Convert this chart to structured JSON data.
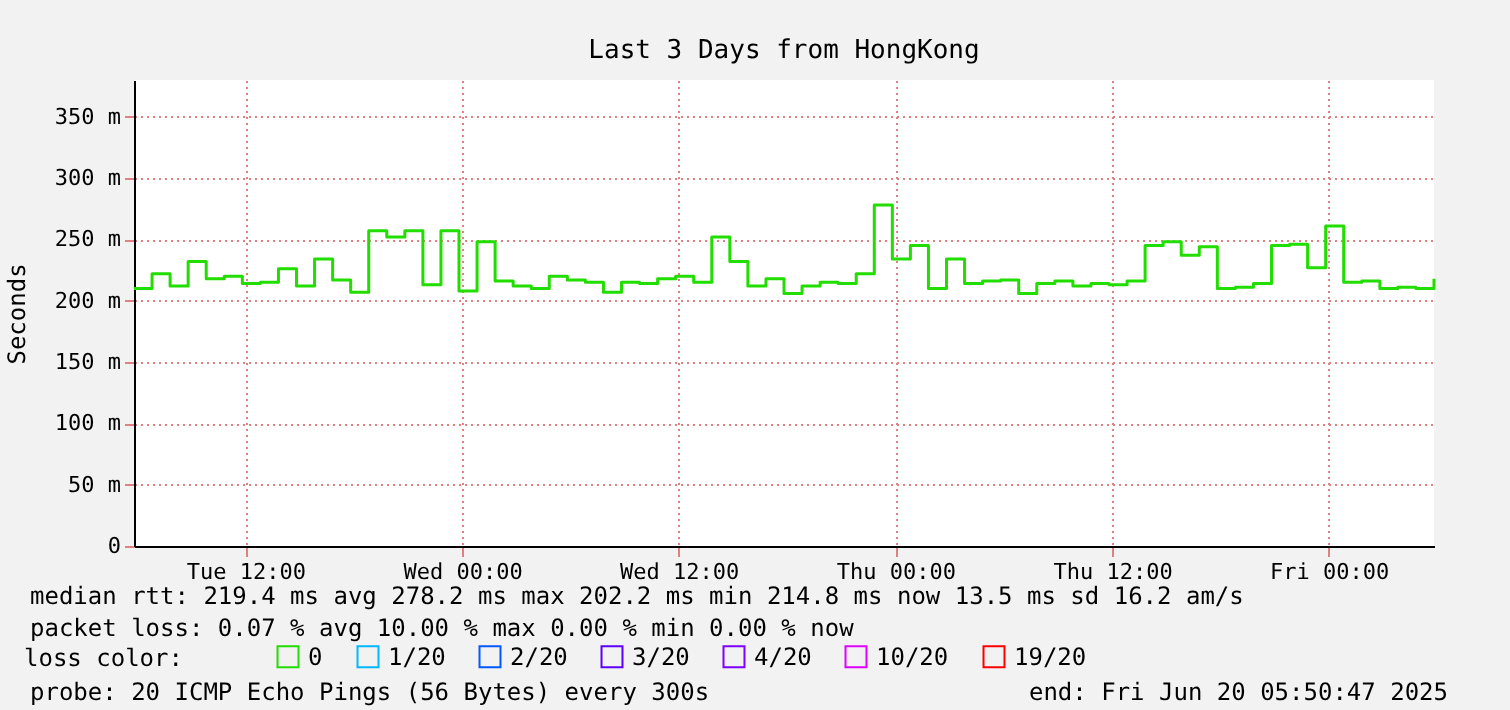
{
  "chart_data": {
    "type": "step",
    "title": "Last 3 Days from HongKong",
    "ylabel": "Seconds",
    "legend_title": "loss color:",
    "legend": "bottom left",
    "grid": true,
    "line_style": "solid",
    "marker": "none",
    "x": [
      "2025-06-17T05:50",
      "2025-06-17T06:50",
      "2025-06-17T07:50",
      "2025-06-17T08:50",
      "2025-06-17T09:50",
      "2025-06-17T10:50",
      "2025-06-17T11:50",
      "2025-06-17T12:50",
      "2025-06-17T13:50",
      "2025-06-17T14:50",
      "2025-06-17T15:50",
      "2025-06-17T16:50",
      "2025-06-17T17:50",
      "2025-06-17T18:50",
      "2025-06-17T19:50",
      "2025-06-17T20:50",
      "2025-06-17T21:50",
      "2025-06-17T22:50",
      "2025-06-17T23:50",
      "2025-06-18T00:50",
      "2025-06-18T01:50",
      "2025-06-18T02:50",
      "2025-06-18T03:50",
      "2025-06-18T04:50",
      "2025-06-18T05:50",
      "2025-06-18T06:50",
      "2025-06-18T07:50",
      "2025-06-18T08:50",
      "2025-06-18T09:50",
      "2025-06-18T10:50",
      "2025-06-18T11:50",
      "2025-06-18T12:50",
      "2025-06-18T13:50",
      "2025-06-18T14:50",
      "2025-06-18T15:50",
      "2025-06-18T16:50",
      "2025-06-18T17:50",
      "2025-06-18T18:50",
      "2025-06-18T19:50",
      "2025-06-18T20:50",
      "2025-06-18T21:50",
      "2025-06-18T22:50",
      "2025-06-18T23:50",
      "2025-06-19T00:50",
      "2025-06-19T01:50",
      "2025-06-19T02:50",
      "2025-06-19T03:50",
      "2025-06-19T04:50",
      "2025-06-19T05:50",
      "2025-06-19T06:50",
      "2025-06-19T07:50",
      "2025-06-19T08:50",
      "2025-06-19T09:50",
      "2025-06-19T10:50",
      "2025-06-19T11:50",
      "2025-06-19T12:50",
      "2025-06-19T13:50",
      "2025-06-19T14:50",
      "2025-06-19T15:50",
      "2025-06-19T16:50",
      "2025-06-19T17:50",
      "2025-06-19T18:50",
      "2025-06-19T19:50",
      "2025-06-19T20:50",
      "2025-06-19T21:50",
      "2025-06-19T22:50",
      "2025-06-19T23:50",
      "2025-06-20T00:50",
      "2025-06-20T01:50",
      "2025-06-20T02:50",
      "2025-06-20T03:50",
      "2025-06-20T04:50",
      "2025-06-20T05:50"
    ],
    "series": [
      {
        "name": "0",
        "color": "#22dd00",
        "values": [
          210,
          222,
          212,
          232,
          218,
          220,
          214,
          215,
          226,
          212,
          234,
          217,
          207,
          257,
          252,
          257,
          213,
          257,
          208,
          248,
          216,
          212,
          210,
          220,
          217,
          215,
          207,
          215,
          214,
          218,
          220,
          215,
          252,
          232,
          212,
          218,
          206,
          212,
          215,
          214,
          222,
          278,
          234,
          245,
          210,
          234,
          214,
          216,
          217,
          206,
          214,
          216,
          212,
          214,
          213,
          216,
          245,
          248,
          237,
          244,
          210,
          211,
          214,
          245,
          246,
          227,
          261,
          215,
          216,
          210,
          211,
          210,
          218
        ]
      },
      {
        "name": "1/20",
        "color": "#00b8ff",
        "values": [
          null,
          null,
          null,
          null,
          null,
          null,
          null,
          null,
          null,
          null,
          null,
          null,
          null,
          null,
          null,
          null,
          null,
          null,
          null,
          null,
          null,
          null,
          null,
          null,
          null,
          null,
          null,
          null,
          null,
          null,
          null,
          null,
          null,
          null,
          null,
          null,
          null,
          null,
          null,
          null,
          null,
          null,
          null,
          null,
          null,
          null,
          null,
          null,
          null,
          null,
          null,
          null,
          null,
          null,
          null,
          null,
          null,
          null,
          null,
          null,
          null,
          null,
          null,
          null,
          null,
          null,
          null,
          null,
          null,
          null,
          null,
          null,
          null
        ]
      },
      {
        "name": "2/20",
        "color": "#0059ff",
        "values": [
          null,
          null,
          null,
          null,
          null,
          null,
          null,
          null,
          null,
          null,
          null,
          null,
          null,
          null,
          null,
          null,
          null,
          null,
          null,
          null,
          null,
          null,
          null,
          null,
          null,
          null,
          null,
          null,
          null,
          null,
          null,
          null,
          null,
          null,
          null,
          null,
          null,
          null,
          null,
          null,
          null,
          null,
          null,
          null,
          null,
          null,
          null,
          null,
          null,
          null,
          null,
          null,
          null,
          null,
          null,
          null,
          null,
          null,
          null,
          null,
          null,
          null,
          null,
          null,
          null,
          null,
          null,
          null,
          null,
          null,
          null,
          null,
          null
        ]
      },
      {
        "name": "3/20",
        "color": "#5e00ff",
        "values": [
          null,
          null,
          null,
          null,
          null,
          null,
          null,
          null,
          null,
          null,
          null,
          null,
          null,
          null,
          null,
          null,
          null,
          null,
          null,
          null,
          null,
          null,
          null,
          null,
          null,
          null,
          null,
          null,
          null,
          null,
          null,
          null,
          null,
          null,
          null,
          null,
          null,
          null,
          null,
          null,
          null,
          null,
          null,
          null,
          null,
          null,
          null,
          null,
          null,
          null,
          null,
          null,
          null,
          null,
          null,
          null,
          null,
          null,
          null,
          null,
          null,
          null,
          null,
          null,
          null,
          null,
          null,
          null,
          null,
          null,
          null,
          null,
          null
        ]
      },
      {
        "name": "4/20",
        "color": "#7e00ff",
        "values": [
          null,
          null,
          null,
          null,
          null,
          null,
          null,
          null,
          null,
          null,
          null,
          null,
          null,
          null,
          null,
          null,
          null,
          null,
          null,
          null,
          null,
          null,
          null,
          null,
          null,
          null,
          null,
          null,
          null,
          null,
          null,
          null,
          null,
          null,
          null,
          null,
          null,
          null,
          null,
          null,
          null,
          null,
          null,
          null,
          null,
          null,
          null,
          null,
          null,
          null,
          null,
          null,
          null,
          null,
          null,
          null,
          null,
          null,
          null,
          null,
          null,
          null,
          null,
          null,
          null,
          null,
          null,
          null,
          null,
          null,
          null,
          null,
          null
        ]
      },
      {
        "name": "10/20",
        "color": "#dd00ff",
        "values": [
          null,
          null,
          null,
          null,
          null,
          null,
          null,
          null,
          null,
          null,
          null,
          null,
          null,
          null,
          null,
          null,
          null,
          null,
          null,
          null,
          null,
          null,
          null,
          null,
          null,
          null,
          null,
          null,
          null,
          null,
          null,
          null,
          null,
          null,
          null,
          null,
          null,
          null,
          null,
          null,
          null,
          null,
          null,
          null,
          null,
          null,
          null,
          null,
          null,
          null,
          null,
          null,
          null,
          null,
          null,
          null,
          null,
          null,
          null,
          null,
          null,
          null,
          null,
          null,
          null,
          null,
          null,
          null,
          null,
          null,
          null,
          null,
          null
        ]
      },
      {
        "name": "19/20",
        "color": "#ff0000",
        "values": [
          null,
          null,
          null,
          null,
          null,
          null,
          null,
          null,
          null,
          null,
          null,
          null,
          null,
          null,
          null,
          null,
          null,
          null,
          null,
          null,
          null,
          null,
          null,
          null,
          null,
          null,
          null,
          null,
          null,
          null,
          null,
          null,
          null,
          null,
          null,
          null,
          null,
          null,
          null,
          null,
          null,
          null,
          null,
          null,
          null,
          null,
          null,
          null,
          null,
          null,
          null,
          null,
          null,
          null,
          null,
          null,
          null,
          null,
          null,
          null,
          null,
          null,
          null,
          null,
          null,
          null,
          null,
          null,
          null,
          null,
          null,
          null,
          null
        ]
      }
    ],
    "xlim": [
      "2025-06-17T05:50",
      "2025-06-20T05:50"
    ],
    "xticks": [
      {
        "value": "2025-06-17T12:00",
        "label": "Tue 12:00"
      },
      {
        "value": "2025-06-18T00:00",
        "label": "Wed 00:00"
      },
      {
        "value": "2025-06-18T12:00",
        "label": "Wed 12:00"
      },
      {
        "value": "2025-06-19T00:00",
        "label": "Thu 00:00"
      },
      {
        "value": "2025-06-19T12:00",
        "label": "Thu 12:00"
      },
      {
        "value": "2025-06-20T00:00",
        "label": "Fri 00:00"
      }
    ],
    "ylim": [
      0,
      380
    ],
    "yticks": [
      0,
      {
        "value": 50,
        "label": "50 m"
      },
      {
        "value": 100,
        "label": "100 m"
      },
      {
        "value": 150,
        "label": "150 m"
      },
      {
        "value": 200,
        "label": "200 m"
      },
      {
        "value": 250,
        "label": "250 m"
      },
      {
        "value": 300,
        "label": "300 m"
      },
      {
        "value": 350,
        "label": "350 m"
      }
    ],
    "annotations": [
      "median rtt:  219.4 ms avg  278.2 ms max  202.2 ms min  214.8 ms now  13.5 ms sd  16.2   am/s",
      "packet loss: 0.07 % avg  10.00 % max  0.00 % min  0.00 % now",
      "probe:       20 ICMP Echo Pings (56 Bytes) every 300s",
      "end: Fri Jun 20 05:50:47 2025"
    ]
  }
}
